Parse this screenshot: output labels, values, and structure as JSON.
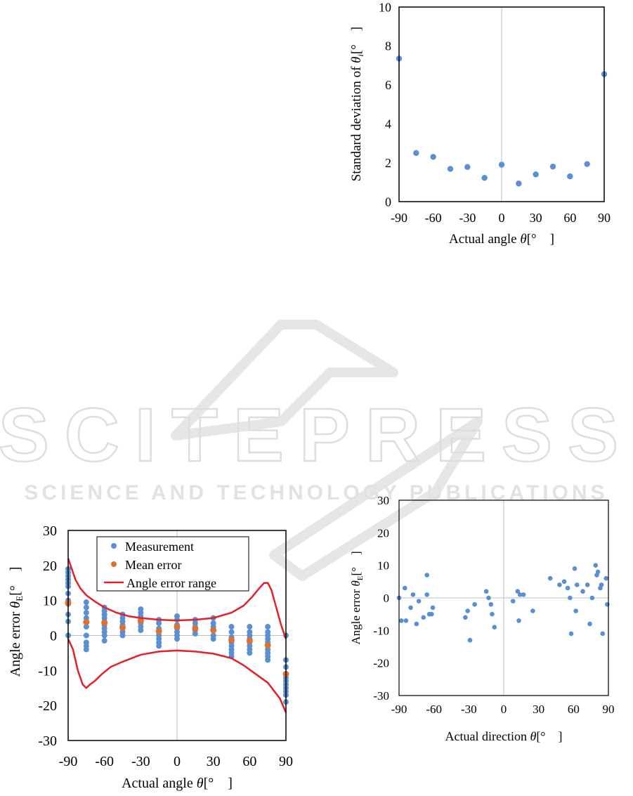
{
  "watermark": {
    "logo_text": "SCITEPRESS",
    "subtitle": "SCIENCE AND TECHNOLOGY PUBLICATIONS"
  },
  "colors": {
    "blue": "#5b8fd4",
    "orange": "#e07030",
    "red": "#e3202a",
    "axis": "#000000",
    "zero_line": "#bfbfbf",
    "watermark": "#dcdcdc"
  },
  "chart_data": [
    {
      "id": "std",
      "type": "scatter",
      "title": "",
      "xlabel_prefix": "Actual angle ",
      "xlabel_symbol": "θ",
      "xlabel_suffix": "[°　]",
      "ylabel_prefix": "Standard deviation of ",
      "ylabel_symbol": "θ",
      "ylabel_sub": "i",
      "ylabel_suffix": "[°　]",
      "xlim": [
        -90,
        90
      ],
      "ylim": [
        0,
        10
      ],
      "xticks": [
        -90,
        -60,
        -30,
        0,
        30,
        60,
        90
      ],
      "yticks": [
        0,
        2,
        4,
        6,
        8,
        10
      ],
      "grid": false,
      "series": [
        {
          "points": [
            [
              -90,
              7.35
            ],
            [
              -75,
              2.5
            ],
            [
              -60,
              2.3
            ],
            [
              -45,
              1.68
            ],
            [
              -30,
              1.78
            ],
            [
              -15,
              1.22
            ],
            [
              0,
              1.9
            ],
            [
              15,
              0.93
            ],
            [
              30,
              1.4
            ],
            [
              45,
              1.8
            ],
            [
              60,
              1.3
            ],
            [
              75,
              1.93
            ],
            [
              90,
              6.55
            ]
          ]
        }
      ]
    },
    {
      "id": "err",
      "type": "scatter",
      "title": "",
      "xlabel_prefix": "Actual angle ",
      "xlabel_symbol": "θ",
      "xlabel_suffix": "[°　]",
      "ylabel_prefix": "Angle error ",
      "ylabel_symbol": "θ",
      "ylabel_sub": "E",
      "ylabel_suffix": "[°　]",
      "xlim": [
        -90,
        90
      ],
      "ylim": [
        -30,
        30
      ],
      "xticks": [
        -90,
        -60,
        -30,
        0,
        30,
        60,
        90
      ],
      "yticks": [
        -30,
        -20,
        -10,
        0,
        10,
        20,
        30
      ],
      "grid": false,
      "legend": {
        "position": "top",
        "measurement": "Measurement",
        "mean": "Mean error",
        "range": "Angle error range"
      },
      "measurements": [
        [
          -90,
          19
        ],
        [
          -90,
          18
        ],
        [
          -90,
          17
        ],
        [
          -90,
          16
        ],
        [
          -90,
          15
        ],
        [
          -90,
          14
        ],
        [
          -90,
          12
        ],
        [
          -90,
          10
        ],
        [
          -90,
          9
        ],
        [
          -90,
          6
        ],
        [
          -90,
          4
        ],
        [
          -90,
          0
        ],
        [
          -75,
          9.5
        ],
        [
          -75,
          8
        ],
        [
          -75,
          6.5
        ],
        [
          -75,
          5
        ],
        [
          -75,
          4
        ],
        [
          -75,
          2.5
        ],
        [
          -75,
          0
        ],
        [
          -75,
          -2
        ],
        [
          -75,
          -3
        ],
        [
          -75,
          -4
        ],
        [
          -60,
          8
        ],
        [
          -60,
          7
        ],
        [
          -60,
          6
        ],
        [
          -60,
          5
        ],
        [
          -60,
          4
        ],
        [
          -60,
          3
        ],
        [
          -60,
          2
        ],
        [
          -60,
          1
        ],
        [
          -60,
          0
        ],
        [
          -60,
          -1.5
        ],
        [
          -45,
          6
        ],
        [
          -45,
          5
        ],
        [
          -45,
          4
        ],
        [
          -45,
          3
        ],
        [
          -45,
          2
        ],
        [
          -45,
          1
        ],
        [
          -45,
          0
        ],
        [
          -30,
          7.5
        ],
        [
          -30,
          6.5
        ],
        [
          -30,
          5.5
        ],
        [
          -30,
          4.5
        ],
        [
          -30,
          3.5
        ],
        [
          -30,
          2.5
        ],
        [
          -30,
          1.5
        ],
        [
          -15,
          4.5
        ],
        [
          -15,
          3.5
        ],
        [
          -15,
          2
        ],
        [
          -15,
          1
        ],
        [
          -15,
          0
        ],
        [
          -15,
          -1
        ],
        [
          -15,
          -2
        ],
        [
          -15,
          -3
        ],
        [
          0,
          5.5
        ],
        [
          0,
          4.5
        ],
        [
          0,
          3
        ],
        [
          0,
          2
        ],
        [
          0,
          1
        ],
        [
          0,
          0
        ],
        [
          0,
          -1
        ],
        [
          15,
          4.5
        ],
        [
          15,
          3.5
        ],
        [
          15,
          2.5
        ],
        [
          15,
          1.5
        ],
        [
          15,
          0.5
        ],
        [
          30,
          5
        ],
        [
          30,
          3.5
        ],
        [
          30,
          2.5
        ],
        [
          30,
          1.5
        ],
        [
          30,
          0
        ],
        [
          30,
          -1
        ],
        [
          45,
          2.5
        ],
        [
          45,
          1
        ],
        [
          45,
          -0.5
        ],
        [
          45,
          -2
        ],
        [
          45,
          -3
        ],
        [
          45,
          -4
        ],
        [
          45,
          -5
        ],
        [
          45,
          -6
        ],
        [
          60,
          2.5
        ],
        [
          60,
          1
        ],
        [
          60,
          0
        ],
        [
          60,
          -1
        ],
        [
          60,
          -2
        ],
        [
          60,
          -3
        ],
        [
          60,
          -4
        ],
        [
          60,
          -5
        ],
        [
          75,
          2.5
        ],
        [
          75,
          1
        ],
        [
          75,
          0
        ],
        [
          75,
          -1
        ],
        [
          75,
          -2
        ],
        [
          75,
          -3
        ],
        [
          75,
          -4
        ],
        [
          75,
          -5
        ],
        [
          75,
          -6
        ],
        [
          75,
          -7
        ],
        [
          90,
          0
        ],
        [
          90,
          -7
        ],
        [
          90,
          -9
        ],
        [
          90,
          -11
        ],
        [
          90,
          -12
        ],
        [
          90,
          -13
        ],
        [
          90,
          -14
        ],
        [
          90,
          -15
        ],
        [
          90,
          -16
        ],
        [
          90,
          -17
        ],
        [
          90,
          -19
        ]
      ],
      "means": [
        [
          -90,
          9.3
        ],
        [
          -75,
          3.8
        ],
        [
          -60,
          3.6
        ],
        [
          -45,
          2.3
        ],
        [
          -30,
          4.2
        ],
        [
          -15,
          1.2
        ],
        [
          0,
          2.5
        ],
        [
          15,
          2.0
        ],
        [
          30,
          1.5
        ],
        [
          45,
          -1.3
        ],
        [
          60,
          -1.5
        ],
        [
          75,
          -2.8
        ],
        [
          90,
          -11
        ]
      ],
      "upper_range": [
        [
          -90,
          22
        ],
        [
          -87,
          19
        ],
        [
          -84,
          16
        ],
        [
          -80,
          13.5
        ],
        [
          -75,
          11.5
        ],
        [
          -67,
          9.5
        ],
        [
          -60,
          8
        ],
        [
          -50,
          6.5
        ],
        [
          -40,
          5.5
        ],
        [
          -30,
          5
        ],
        [
          -15,
          4.5
        ],
        [
          0,
          4.3
        ],
        [
          15,
          4.5
        ],
        [
          30,
          5
        ],
        [
          45,
          6.5
        ],
        [
          55,
          8.5
        ],
        [
          62,
          11
        ],
        [
          68,
          13.5
        ],
        [
          72,
          15
        ],
        [
          75,
          15
        ],
        [
          78,
          13
        ],
        [
          82,
          8
        ],
        [
          86,
          3
        ],
        [
          90,
          -1
        ]
      ],
      "lower_range": [
        [
          -90,
          -1
        ],
        [
          -86,
          -4
        ],
        [
          -82,
          -10
        ],
        [
          -78,
          -14
        ],
        [
          -75,
          -15
        ],
        [
          -72,
          -14
        ],
        [
          -68,
          -13
        ],
        [
          -62,
          -11
        ],
        [
          -55,
          -9
        ],
        [
          -45,
          -7.5
        ],
        [
          -30,
          -5.5
        ],
        [
          -15,
          -4.6
        ],
        [
          0,
          -4.3
        ],
        [
          15,
          -4.6
        ],
        [
          30,
          -5.2
        ],
        [
          45,
          -6.5
        ],
        [
          55,
          -8.5
        ],
        [
          65,
          -11
        ],
        [
          75,
          -13.5
        ],
        [
          85,
          -18
        ],
        [
          90,
          -22
        ]
      ]
    },
    {
      "id": "dir",
      "type": "scatter",
      "title": "",
      "xlabel_prefix": "Actual direction ",
      "xlabel_symbol": "θ",
      "xlabel_suffix": "[°　]",
      "ylabel_prefix": "Angle error ",
      "ylabel_symbol": "θ",
      "ylabel_sub": "E",
      "ylabel_suffix": "[°　]",
      "xlim": [
        -90,
        90
      ],
      "ylim": [
        -30,
        30
      ],
      "xticks": [
        -90,
        -60,
        -30,
        0,
        30,
        60,
        90
      ],
      "yticks": [
        -30,
        -20,
        -10,
        0,
        10,
        20,
        30
      ],
      "grid": false,
      "series": [
        {
          "points": [
            [
              -90,
              0
            ],
            [
              -88,
              -7
            ],
            [
              -85,
              3
            ],
            [
              -84,
              -7
            ],
            [
              -80,
              -3
            ],
            [
              -78,
              1
            ],
            [
              -75,
              -8
            ],
            [
              -73,
              -1
            ],
            [
              -69,
              -6
            ],
            [
              -66,
              1
            ],
            [
              -66,
              7
            ],
            [
              -64,
              -5
            ],
            [
              -62,
              -5
            ],
            [
              -61,
              -3
            ],
            [
              -33,
              -6
            ],
            [
              -31,
              -4
            ],
            [
              -29,
              -13
            ],
            [
              -25,
              -2
            ],
            [
              -15,
              2
            ],
            [
              -13,
              0
            ],
            [
              -11,
              -2
            ],
            [
              -10,
              -5
            ],
            [
              -8,
              -9
            ],
            [
              8,
              -1
            ],
            [
              12,
              2
            ],
            [
              13,
              -7
            ],
            [
              14,
              1
            ],
            [
              17,
              1
            ],
            [
              25,
              -4
            ],
            [
              40,
              6
            ],
            [
              48,
              4
            ],
            [
              52,
              5
            ],
            [
              55,
              3
            ],
            [
              57,
              0
            ],
            [
              58,
              -11
            ],
            [
              61,
              9
            ],
            [
              62,
              -4
            ],
            [
              63,
              4
            ],
            [
              68,
              2
            ],
            [
              72,
              4
            ],
            [
              74,
              -8
            ],
            [
              76,
              0
            ],
            [
              79,
              10
            ],
            [
              80,
              7
            ],
            [
              81,
              8
            ],
            [
              83,
              3
            ],
            [
              84,
              4
            ],
            [
              85,
              -11
            ],
            [
              88,
              6
            ],
            [
              89,
              -2
            ]
          ]
        }
      ]
    }
  ]
}
